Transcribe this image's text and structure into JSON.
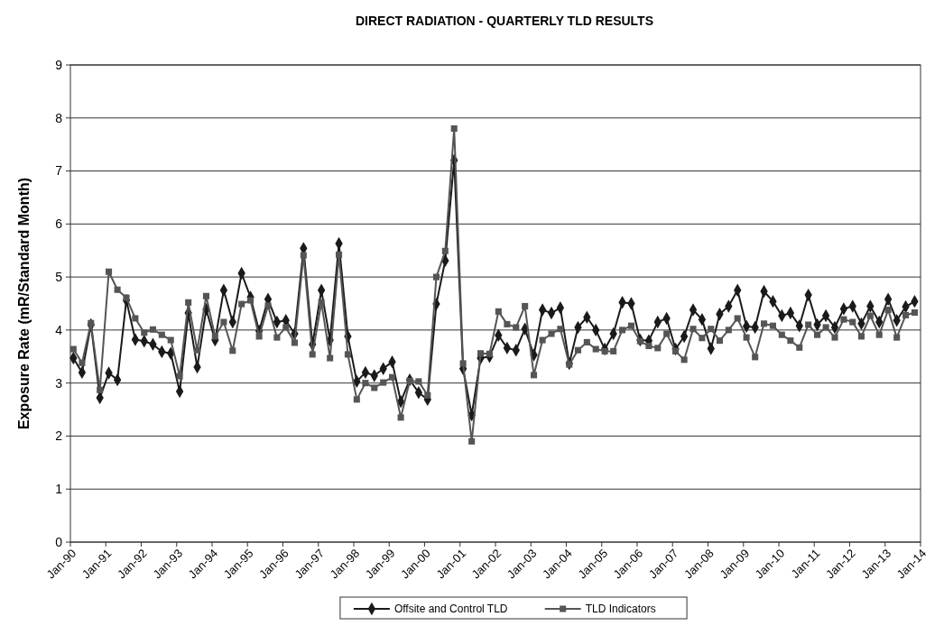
{
  "chart_data": {
    "type": "line",
    "title": "DIRECT RADIATION - QUARTERLY TLD RESULTS",
    "ylabel": "Exposure Rate (mR/Standard Month)",
    "x": [
      "1990-02",
      "1990-05",
      "1990-08",
      "1990-11",
      "1991-02",
      "1991-05",
      "1991-08",
      "1991-11",
      "1992-02",
      "1992-05",
      "1992-08",
      "1992-11",
      "1993-02",
      "1993-05",
      "1993-08",
      "1993-11",
      "1994-02",
      "1994-05",
      "1994-08",
      "1994-11",
      "1995-02",
      "1995-05",
      "1995-08",
      "1995-11",
      "1996-02",
      "1996-05",
      "1996-08",
      "1996-11",
      "1997-02",
      "1997-05",
      "1997-08",
      "1997-11",
      "1998-02",
      "1998-05",
      "1998-08",
      "1998-11",
      "1999-02",
      "1999-05",
      "1999-08",
      "1999-11",
      "2000-02",
      "2000-05",
      "2000-08",
      "2000-11",
      "2001-02",
      "2001-05",
      "2001-08",
      "2001-11",
      "2002-02",
      "2002-05",
      "2002-08",
      "2002-11",
      "2003-02",
      "2003-05",
      "2003-08",
      "2003-11",
      "2004-02",
      "2004-05",
      "2004-08",
      "2004-11",
      "2005-02",
      "2005-05",
      "2005-08",
      "2005-11",
      "2006-02",
      "2006-05",
      "2006-08",
      "2006-11",
      "2007-02",
      "2007-05",
      "2007-08",
      "2007-11",
      "2008-02",
      "2008-05",
      "2008-08",
      "2008-11",
      "2009-02",
      "2009-05",
      "2009-08",
      "2009-11",
      "2010-02",
      "2010-05",
      "2010-08",
      "2010-11",
      "2011-02",
      "2011-05",
      "2011-08",
      "2011-11",
      "2012-02",
      "2012-05",
      "2012-08",
      "2012-11",
      "2013-02",
      "2013-05",
      "2013-08",
      "2013-11"
    ],
    "series": [
      {
        "name": "Offsite and Control TLD",
        "color": "#1a1a1a",
        "marker": "diamond",
        "values": [
          3.47,
          3.2,
          4.1,
          2.72,
          3.19,
          3.06,
          4.56,
          3.82,
          3.79,
          3.73,
          3.59,
          3.56,
          2.84,
          4.32,
          3.3,
          4.39,
          3.81,
          4.75,
          4.15,
          5.07,
          4.62,
          3.98,
          4.58,
          4.15,
          4.18,
          3.93,
          5.54,
          3.73,
          4.75,
          3.81,
          5.63,
          3.88,
          3.03,
          3.2,
          3.14,
          3.27,
          3.4,
          2.65,
          3.06,
          2.82,
          2.69,
          4.49,
          5.31,
          7.2,
          3.27,
          2.4,
          3.47,
          3.5,
          3.9,
          3.66,
          3.62,
          4.02,
          3.53,
          4.38,
          4.32,
          4.42,
          3.37,
          4.05,
          4.24,
          4.0,
          3.64,
          3.93,
          4.52,
          4.5,
          3.81,
          3.8,
          4.15,
          4.22,
          3.64,
          3.88,
          4.38,
          4.2,
          3.65,
          4.3,
          4.45,
          4.75,
          4.07,
          4.05,
          4.73,
          4.54,
          4.27,
          4.32,
          4.08,
          4.66,
          4.1,
          4.27,
          4.05,
          4.4,
          4.45,
          4.12,
          4.45,
          4.15,
          4.58,
          4.18,
          4.44,
          4.54
        ]
      },
      {
        "name": "TLD Indicators",
        "color": "#555555",
        "marker": "square",
        "values": [
          3.64,
          3.38,
          4.13,
          2.87,
          5.1,
          4.76,
          4.61,
          4.22,
          3.95,
          4.01,
          3.91,
          3.81,
          3.13,
          4.52,
          3.62,
          4.64,
          3.88,
          4.15,
          3.61,
          4.49,
          4.56,
          3.88,
          4.46,
          3.86,
          4.05,
          3.76,
          5.41,
          3.54,
          4.52,
          3.47,
          5.42,
          3.54,
          2.69,
          3.0,
          2.91,
          3.01,
          3.11,
          2.35,
          3.04,
          3.03,
          2.77,
          5.0,
          5.49,
          7.8,
          3.37,
          1.9,
          3.56,
          3.55,
          4.35,
          4.11,
          4.05,
          4.45,
          3.15,
          3.81,
          3.93,
          4.02,
          3.35,
          3.62,
          3.77,
          3.64,
          3.6,
          3.6,
          4.0,
          4.08,
          3.79,
          3.7,
          3.66,
          3.93,
          3.6,
          3.44,
          4.02,
          3.85,
          4.02,
          3.8,
          4.0,
          4.22,
          3.86,
          3.49,
          4.12,
          4.08,
          3.91,
          3.8,
          3.67,
          4.1,
          3.91,
          4.05,
          3.86,
          4.2,
          4.15,
          3.88,
          4.27,
          3.91,
          4.38,
          3.86,
          4.28,
          4.33
        ]
      }
    ],
    "xlim": [
      "1990-01",
      "2014-01"
    ],
    "xticks": [
      {
        "value": "1990-01",
        "label": "Jan-90"
      },
      {
        "value": "1991-01",
        "label": "Jan-91"
      },
      {
        "value": "1992-01",
        "label": "Jan-92"
      },
      {
        "value": "1993-01",
        "label": "Jan-93"
      },
      {
        "value": "1994-01",
        "label": "Jan-94"
      },
      {
        "value": "1995-01",
        "label": "Jan-95"
      },
      {
        "value": "1996-01",
        "label": "Jan-96"
      },
      {
        "value": "1997-01",
        "label": "Jan-97"
      },
      {
        "value": "1998-01",
        "label": "Jan-98"
      },
      {
        "value": "1999-01",
        "label": "Jan-99"
      },
      {
        "value": "2000-01",
        "label": "Jan-00"
      },
      {
        "value": "2001-01",
        "label": "Jan-01"
      },
      {
        "value": "2002-01",
        "label": "Jan-02"
      },
      {
        "value": "2003-01",
        "label": "Jan-03"
      },
      {
        "value": "2004-01",
        "label": "Jan-04"
      },
      {
        "value": "2005-01",
        "label": "Jan-05"
      },
      {
        "value": "2006-01",
        "label": "Jan-06"
      },
      {
        "value": "2007-01",
        "label": "Jan-07"
      },
      {
        "value": "2008-01",
        "label": "Jan-08"
      },
      {
        "value": "2009-01",
        "label": "Jan-09"
      },
      {
        "value": "2010-01",
        "label": "Jan-10"
      },
      {
        "value": "2011-01",
        "label": "Jan-11"
      },
      {
        "value": "2012-01",
        "label": "Jan-12"
      },
      {
        "value": "2013-01",
        "label": "Jan-13"
      },
      {
        "value": "2014-01",
        "label": "Jan-14"
      }
    ],
    "ylim": [
      0,
      9
    ],
    "yticks": [
      0,
      1,
      2,
      3,
      4,
      5,
      6,
      7,
      8,
      9
    ],
    "grid": "y",
    "legend": "bottom"
  }
}
